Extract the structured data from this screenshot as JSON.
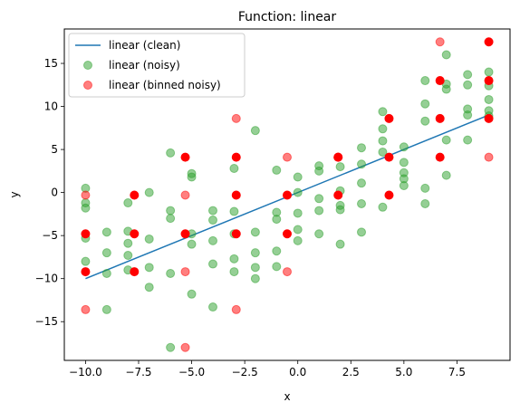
{
  "chart_data": {
    "type": "scatter",
    "title": "Function: linear",
    "xlabel": "x",
    "ylabel": "y",
    "xlim": [
      -11.0,
      10.0
    ],
    "ylim": [
      -19.5,
      19.0
    ],
    "xticks": [
      -10.0,
      -7.5,
      -5.0,
      -2.5,
      0.0,
      2.5,
      5.0,
      7.5
    ],
    "xtick_labels": [
      "−10.0",
      "−7.5",
      "−5.0",
      "−2.5",
      "0.0",
      "2.5",
      "5.0",
      "7.5"
    ],
    "yticks": [
      -15,
      -10,
      -5,
      0,
      5,
      10,
      15
    ],
    "ytick_labels": [
      "−15",
      "−10",
      "−5",
      "0",
      "5",
      "10",
      "15"
    ],
    "grid": false,
    "legend_position": "top-left",
    "series": [
      {
        "name": "linear (clean)",
        "kind": "line",
        "color": "#1f77b4",
        "x": [
          -10,
          9
        ],
        "y": [
          -10,
          9
        ]
      },
      {
        "name": "linear (noisy)",
        "kind": "scatter",
        "color": "#2ca02c",
        "x": [
          -10,
          -10,
          -10,
          -10,
          -10,
          -9,
          -9,
          -9,
          -9,
          -8,
          -8,
          -8,
          -8,
          -8,
          -7,
          -7,
          -7,
          -7,
          -6,
          -6,
          -6,
          -6,
          -6,
          -5,
          -5,
          -5,
          -5,
          -5,
          -4,
          -4,
          -4,
          -4,
          -4,
          -3,
          -3,
          -3,
          -3,
          -3,
          -2,
          -2,
          -2,
          -2,
          -2,
          -1,
          -1,
          -1,
          -1,
          -1,
          0,
          0,
          0,
          0,
          0,
          1,
          1,
          1,
          1,
          1,
          2,
          2,
          2,
          2,
          2,
          3,
          3,
          3,
          3,
          3,
          4,
          4,
          4,
          4,
          4,
          5,
          5,
          5,
          5,
          5,
          6,
          6,
          6,
          6,
          6,
          7,
          7,
          7,
          7,
          7,
          8,
          8,
          8,
          8,
          8,
          9,
          9,
          9,
          9,
          9
        ],
        "y": [
          0.5,
          -1.2,
          -1.8,
          -5.3,
          -8.0,
          -4.6,
          -7.0,
          -9.4,
          -13.6,
          -1.2,
          -4.5,
          -5.9,
          -7.3,
          -9.0,
          0.0,
          -5.4,
          -8.7,
          -11.0,
          4.6,
          -2.1,
          -3.0,
          -9.4,
          -18.0,
          2.2,
          1.8,
          -4.8,
          -6.0,
          -11.8,
          -2.1,
          -3.2,
          -5.6,
          -8.3,
          -13.3,
          2.8,
          -2.2,
          -4.8,
          -7.7,
          -9.2,
          7.2,
          -4.6,
          -7.0,
          -8.7,
          -10.0,
          2.6,
          -2.3,
          -3.1,
          -6.8,
          -8.6,
          1.8,
          0.0,
          -2.4,
          -4.3,
          -5.6,
          3.1,
          2.5,
          -0.7,
          -2.1,
          -4.8,
          3.0,
          0.2,
          -1.5,
          -2.0,
          -6.0,
          5.2,
          3.3,
          1.1,
          -1.3,
          -4.6,
          9.4,
          7.4,
          6.0,
          4.7,
          -1.7,
          5.3,
          3.5,
          2.3,
          1.6,
          0.8,
          13.0,
          10.3,
          8.3,
          0.5,
          -1.3,
          16.0,
          12.6,
          12.0,
          6.1,
          2.0,
          13.7,
          12.5,
          9.7,
          9.0,
          6.1,
          14.0,
          12.4,
          10.8,
          9.5,
          8.9
        ]
      },
      {
        "name": "linear (binned noisy)",
        "kind": "scatter",
        "color": "#ff0000",
        "x": [
          -10,
          -10,
          -10,
          -10,
          -7.7,
          -7.7,
          -7.7,
          -5.3,
          -5.3,
          -5.3,
          -5.3,
          -5.3,
          -2.9,
          -2.9,
          -2.9,
          -2.9,
          -2.9,
          -0.5,
          -0.5,
          -0.5,
          -0.5,
          1.9,
          1.9,
          1.9,
          4.3,
          4.3,
          4.3,
          6.7,
          6.7,
          6.7,
          6.7,
          9,
          9,
          9,
          9
        ],
        "y": [
          -0.3,
          -4.8,
          -9.2,
          -13.6,
          -0.3,
          -4.8,
          -9.2,
          4.1,
          -0.3,
          -4.8,
          -9.2,
          -18.0,
          8.6,
          4.1,
          -0.3,
          -4.8,
          -13.6,
          4.1,
          -0.3,
          -4.8,
          -9.2,
          4.1,
          4.1,
          -0.3,
          8.6,
          4.1,
          -0.3,
          17.5,
          13.0,
          8.6,
          4.1,
          17.5,
          13.0,
          8.6,
          4.1
        ],
        "opacity": [
          0.5,
          1,
          1,
          0.5,
          1,
          1,
          1,
          1,
          0.5,
          1,
          0.5,
          0.5,
          0.5,
          1,
          1,
          1,
          0.5,
          0.5,
          1,
          1,
          0.5,
          1,
          1,
          1,
          1,
          1,
          1,
          0.5,
          1,
          1,
          1,
          1,
          1,
          1,
          0.5
        ]
      }
    ]
  }
}
